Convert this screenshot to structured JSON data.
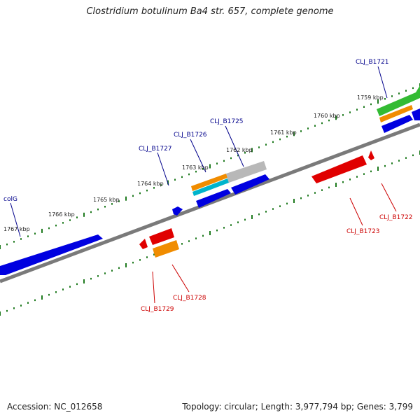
{
  "title": "Clostridium botulinum Ba4 str. 657, complete genome",
  "footer": {
    "accession": "Accession: NC_012658",
    "summary": "Topology: circular; Length: 3,977,794 bp; Genes: 3,799"
  },
  "colors": {
    "backbone": "#7a7a7a",
    "tick": "#1f7a1f",
    "forward_gene": "#0000e0",
    "reverse_gene": "#e00000",
    "forward_label": "#00008b",
    "reverse_label": "#cc0000",
    "orange": "#f08c00",
    "cyan": "#00b4cc",
    "grey": "#b8b8b8",
    "green": "#33bb33"
  },
  "ruler_labels": [
    "1759 kbp",
    "1760 kbp",
    "1761 kbp",
    "1762 kbp",
    "1763 kbp",
    "1764 kbp",
    "1765 kbp",
    "1766 kbp",
    "1767 kbp"
  ],
  "gene_labels": {
    "forward": [
      "CLJ_B1721",
      "CLJ_B1725",
      "CLJ_B1726",
      "CLJ_B1727",
      "colG"
    ],
    "reverse": [
      "CLJ_B1722",
      "CLJ_B1723",
      "CLJ_B1728",
      "CLJ_B1729"
    ]
  }
}
